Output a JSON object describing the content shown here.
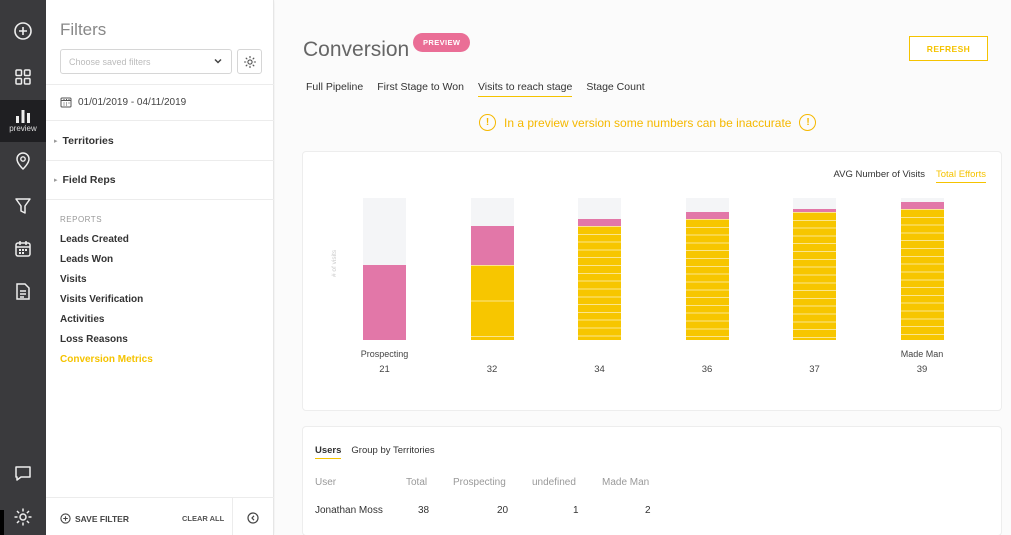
{
  "rail": {
    "preview_caption": "preview"
  },
  "filters": {
    "title": "Filters",
    "saved_placeholder": "Choose saved filters",
    "date_range": "01/01/2019 - 04/11/2019",
    "groups": [
      "Territories",
      "Field Reps"
    ],
    "reports_heading": "REPORTS",
    "reports": [
      "Leads Created",
      "Leads Won",
      "Visits",
      "Visits Verification",
      "Activities",
      "Loss Reasons",
      "Conversion Metrics"
    ],
    "active_report_index": 6,
    "save_label": "SAVE FILTER",
    "clear_label": "CLEAR ALL"
  },
  "header": {
    "title": "Conversion",
    "badge": "PREVIEW",
    "refresh_label": "REFRESH"
  },
  "tabs": {
    "items": [
      "Full Pipeline",
      "First Stage to Won",
      "Visits to reach stage",
      "Stage Count"
    ],
    "active_index": 2
  },
  "warning": {
    "text": "In a preview version some numbers can be inaccurate",
    "icon": "!"
  },
  "colors": {
    "accent": "#f5c300",
    "pink": "#e277a8",
    "yellow": "#f7c600",
    "empty": "#f4f5f7"
  },
  "chart_data": {
    "type": "bar",
    "stacked": true,
    "toggle": [
      "AVG Number of Visits",
      "Total Efforts"
    ],
    "active_toggle_index": 1,
    "ylabel": "# of visits",
    "categories": [
      "Prospecting",
      "",
      "",
      "",
      "",
      "Made Man"
    ],
    "totals": [
      21,
      32,
      34,
      36,
      37,
      39
    ],
    "series": [
      {
        "color": "yellow",
        "values": [
          0,
          21,
          32,
          34,
          36,
          37
        ]
      },
      {
        "color": "pink",
        "values": [
          21,
          11,
          2,
          2,
          1,
          2
        ]
      }
    ],
    "ylim": [
      0,
      40
    ]
  },
  "table": {
    "tabs": [
      "Users",
      "Group by Territories"
    ],
    "active_tab": 0,
    "columns": [
      "User",
      "Total",
      "Prospecting",
      "undefined",
      "Made Man"
    ],
    "rows": [
      [
        "Jonathan Moss",
        "38",
        "20",
        "1",
        "2"
      ]
    ]
  }
}
